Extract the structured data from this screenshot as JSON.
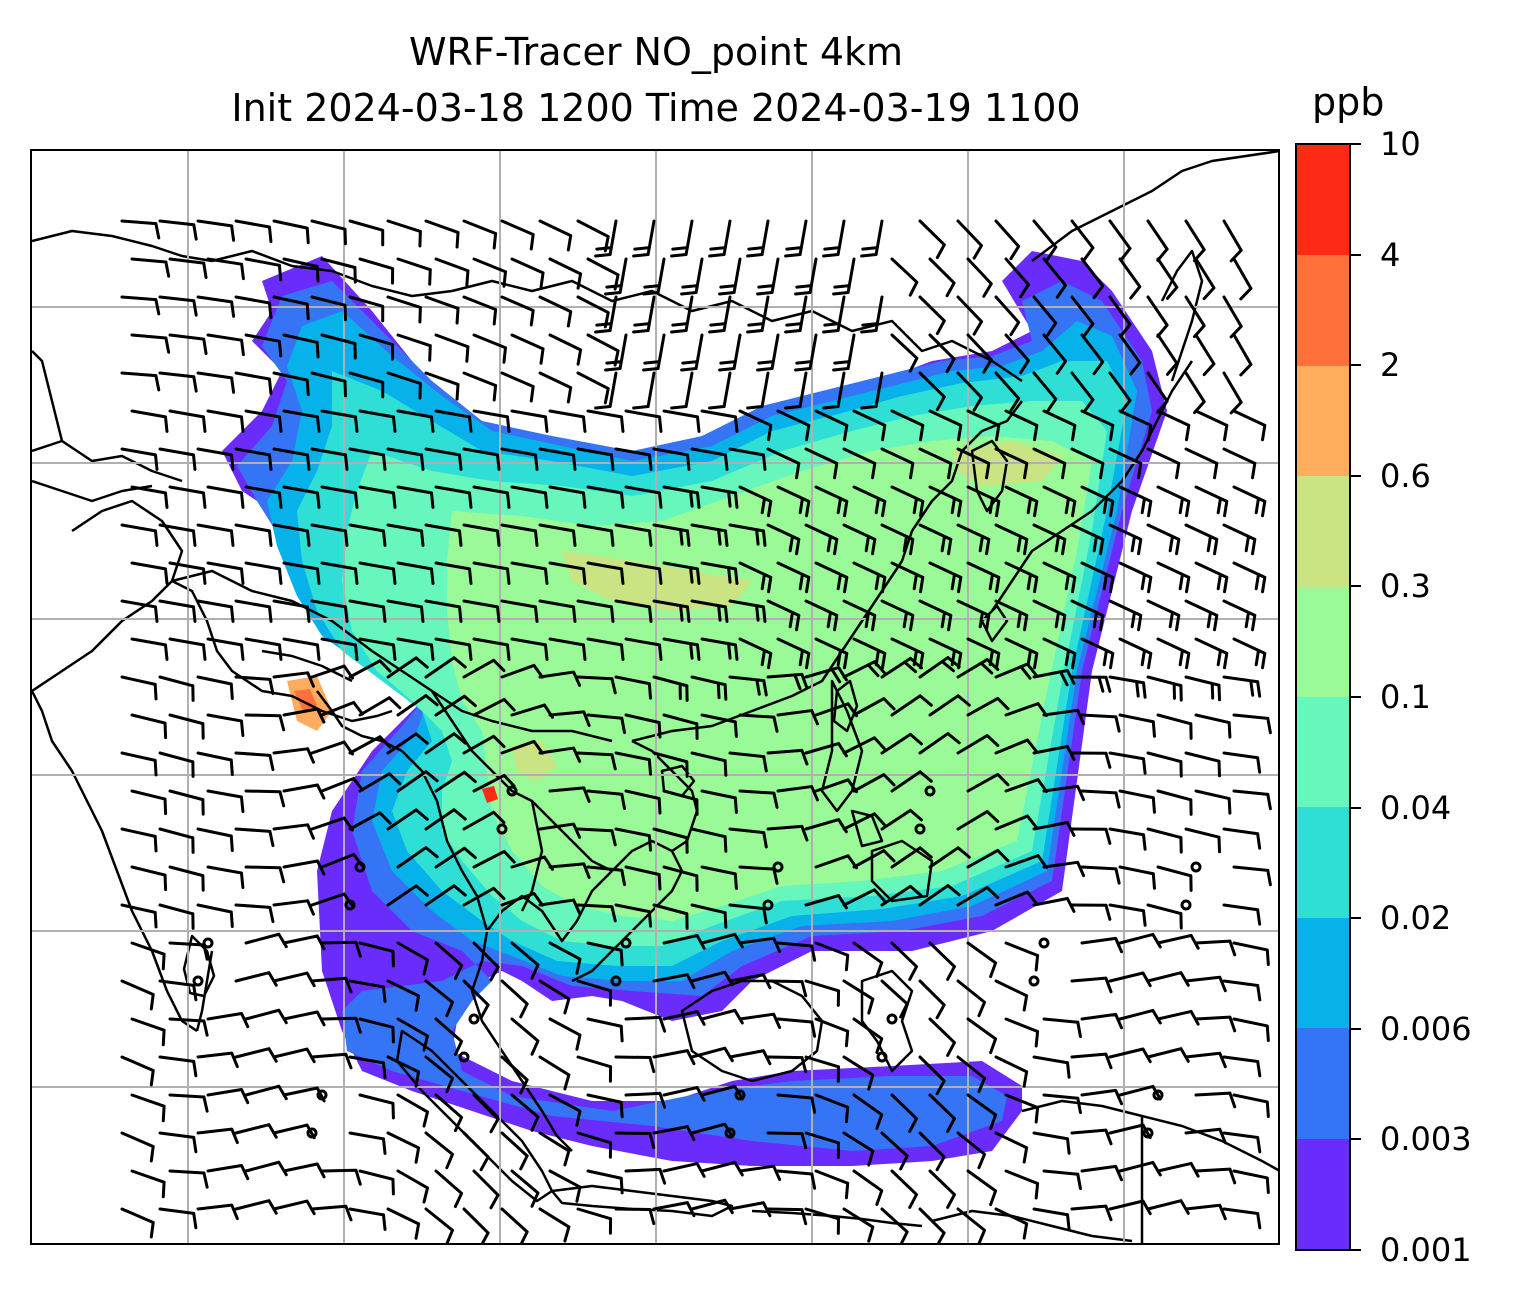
{
  "title": {
    "line1": "WRF-Tracer NO_point 4km",
    "line2": "Init 2024-03-18 1200 Time 2024-03-19 1100"
  },
  "colorbar": {
    "unit": "ppb",
    "ticks": [
      "0.001",
      "0.003",
      "0.006",
      "0.02",
      "0.04",
      "0.1",
      "0.3",
      "0.6",
      "2",
      "4",
      "10"
    ],
    "colors": [
      "#6a2cfb",
      "#3574f5",
      "#06b2e9",
      "#2fdfd5",
      "#67f6bc",
      "#9afa98",
      "#cae383",
      "#feac5d",
      "#ff703a",
      "#ff2a16"
    ]
  },
  "map": {
    "gridlines": true,
    "colormap": "rainbow",
    "overlays": [
      "coastlines",
      "country-borders",
      "wind-barbs"
    ],
    "barb_color": "#000000"
  }
}
